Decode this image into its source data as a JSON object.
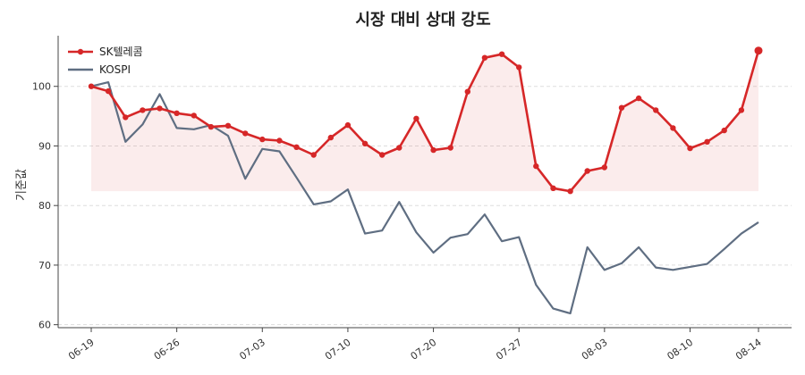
{
  "chart_data": {
    "type": "line",
    "title": "시장 대비 상대 강도",
    "xlabel": "",
    "ylabel": "기준값",
    "ylim": [
      59.5,
      108.5
    ],
    "yticks": [
      60,
      70,
      80,
      90,
      100
    ],
    "x_ticks": [
      "06-19",
      "06-26",
      "07-03",
      "07-10",
      "07-20",
      "07-27",
      "08-03",
      "08-10",
      "08-14"
    ],
    "x_tick_index": [
      0,
      5,
      10,
      15,
      20,
      25,
      30,
      35,
      39
    ],
    "shade_baseline": 82.4,
    "grid": true,
    "legend_position": "top-left",
    "series": [
      {
        "name": "SK텔레콤",
        "color": "#d62728",
        "values": [
          100.0,
          99.2,
          94.8,
          96.0,
          96.3,
          95.5,
          95.1,
          93.2,
          93.4,
          92.1,
          91.1,
          90.9,
          89.8,
          88.5,
          91.4,
          93.5,
          90.4,
          88.5,
          89.7,
          94.6,
          89.3,
          89.7,
          99.1,
          104.8,
          105.4,
          103.2,
          86.6,
          82.9,
          82.4,
          85.8,
          86.4,
          96.4,
          98.0,
          96.0,
          93.0,
          89.6,
          90.7,
          92.6,
          96.0,
          106.0
        ]
      },
      {
        "name": "KOSPI",
        "color": "#5f6e82",
        "values": [
          100.0,
          100.7,
          90.7,
          93.6,
          98.7,
          93.0,
          92.8,
          93.5,
          91.7,
          84.5,
          89.5,
          89.1,
          84.7,
          80.2,
          80.7,
          82.7,
          75.3,
          75.8,
          80.6,
          75.5,
          72.1,
          74.6,
          75.2,
          78.5,
          74.0,
          74.7,
          66.7,
          62.7,
          61.9,
          73.0,
          69.2,
          70.3,
          73.0,
          69.6,
          69.2,
          69.7,
          70.2,
          72.7,
          75.3,
          77.2
        ]
      }
    ]
  }
}
